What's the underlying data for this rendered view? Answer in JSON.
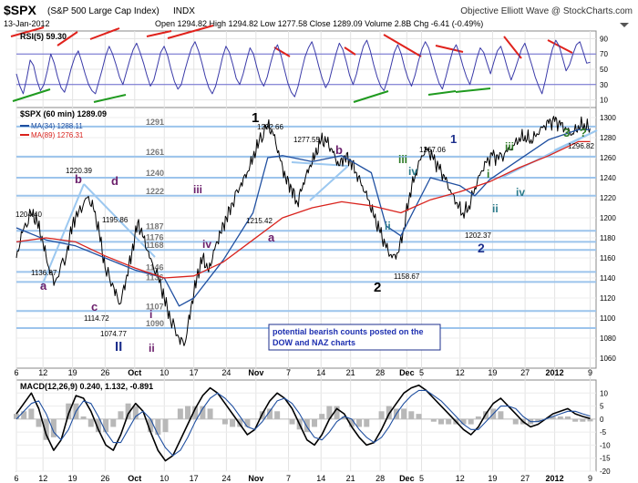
{
  "header": {
    "symbol": "$SPX",
    "description": "(S&P 500 Large Cap Index)",
    "exchange": "INDX",
    "source": "Objective Elliott Wave @ StockCharts.com",
    "date": "13-Jan-2012",
    "quote_line": "Open 1294.82  High 1294.82  Low 1277.58  Close 1289.09  Volume 2.8B  Chg -6.41 (-0.49%)"
  },
  "colors": {
    "price": "#000000",
    "ma34": "#1f4fa0",
    "ma89": "#d9221c",
    "rsi_line": "#3a3aa8",
    "fib_line": "#9cc4ec",
    "wave_purple": "#6b1f6b",
    "wave_blue": "#1d2f8c",
    "wave_green": "#2e7a25",
    "wave_teal": "#2a7a8a",
    "trend_red": "#e0221c",
    "trend_green": "#1f9a1f",
    "trend_lightblue": "#9cc8f0"
  },
  "chart_data": [
    {
      "type": "line",
      "panel": "rsi",
      "title": "RSI(5) 59.30",
      "series_name": "RSI(5)",
      "ylim": [
        0,
        100
      ],
      "yticks": [
        10,
        30,
        50,
        70,
        90
      ],
      "reference_lines": [
        30,
        70
      ],
      "values": [
        44,
        28,
        18,
        38,
        62,
        55,
        35,
        22,
        30,
        48,
        70,
        58,
        40,
        26,
        20,
        34,
        52,
        66,
        74,
        60,
        44,
        30,
        22,
        18,
        34,
        50,
        68,
        80,
        70,
        56,
        40,
        30,
        46,
        62,
        76,
        84,
        72,
        58,
        42,
        28,
        36,
        54,
        72,
        80,
        68,
        50,
        34,
        24,
        30,
        48,
        64,
        78,
        86,
        74,
        58,
        40,
        26,
        18,
        28,
        46,
        66,
        80,
        72,
        56,
        38,
        30,
        44,
        62,
        78,
        70,
        52,
        36,
        28,
        40,
        58,
        74,
        82,
        68,
        50,
        32,
        20,
        14,
        28,
        48,
        66,
        78,
        86,
        72,
        54,
        38,
        26,
        34,
        52,
        70,
        84,
        76,
        60,
        42,
        30,
        44,
        64,
        80,
        88,
        74,
        56,
        40,
        28,
        22,
        36,
        54,
        72,
        82,
        70,
        52,
        38,
        28,
        42,
        60,
        76,
        86,
        78,
        62,
        46,
        32,
        24,
        40,
        58,
        74,
        82,
        70,
        54,
        40,
        30,
        46,
        64,
        78,
        72,
        58,
        44,
        60,
        74,
        80,
        66,
        50,
        36,
        48,
        62,
        76,
        84,
        70,
        56,
        40,
        28,
        18,
        36,
        58,
        76,
        88,
        80,
        64,
        48,
        56,
        70,
        82,
        86,
        72,
        58,
        59
      ]
    },
    {
      "type": "line",
      "panel": "price",
      "title": "$SPX (60 min) 1289.09",
      "series": [
        {
          "name": "$SPX (60 min) 1289.09",
          "x": [
            0,
            2,
            5,
            7,
            9,
            11,
            13,
            17,
            19,
            21,
            24,
            26,
            28,
            30,
            33,
            35,
            37,
            39,
            41,
            43,
            45,
            48,
            50,
            52,
            55,
            57,
            59,
            61,
            63,
            65,
            67,
            69,
            71,
            73,
            76,
            78,
            80,
            82,
            85,
            87,
            89,
            91,
            93,
            95,
            97,
            99,
            101,
            103,
            105,
            107,
            109,
            111,
            113,
            115,
            117,
            119,
            121,
            123,
            125,
            127,
            129,
            131,
            133,
            135,
            137,
            139,
            141,
            143,
            145,
            147,
            149,
            151,
            153,
            155,
            157,
            159,
            161,
            163,
            166,
            168,
            170,
            172,
            174,
            176,
            178,
            180,
            182,
            184,
            186,
            188,
            190,
            192,
            194
          ],
          "values": [
            1160,
            1185,
            1204,
            1196,
            1175,
            1150,
            1136,
            1165,
            1195,
            1205,
            1220,
            1210,
            1185,
            1150,
            1130,
            1114,
            1138,
            1165,
            1195,
            1180,
            1160,
            1140,
            1120,
            1100,
            1080,
            1075,
            1110,
            1140,
            1160,
            1146,
            1168,
            1185,
            1200,
            1215,
            1235,
            1245,
            1260,
            1275,
            1292,
            1282,
            1260,
            1240,
            1230,
            1215,
            1235,
            1250,
            1262,
            1277,
            1275,
            1265,
            1252,
            1262,
            1258,
            1245,
            1232,
            1218,
            1200,
            1185,
            1170,
            1160,
            1165,
            1190,
            1225,
            1245,
            1262,
            1268,
            1258,
            1248,
            1238,
            1225,
            1215,
            1205,
            1212,
            1230,
            1245,
            1255,
            1262,
            1258,
            1266,
            1272,
            1280,
            1282,
            1278,
            1284,
            1290,
            1294,
            1296,
            1292,
            1288,
            1284,
            1292,
            1294,
            1289
          ]
        },
        {
          "name": "MA(34) 1288.11",
          "x": [
            0,
            10,
            20,
            30,
            40,
            50,
            55,
            60,
            70,
            80,
            85,
            90,
            100,
            110,
            120,
            125,
            130,
            140,
            150,
            155,
            160,
            170,
            180,
            190,
            194
          ],
          "values": [
            1190,
            1178,
            1172,
            1160,
            1148,
            1140,
            1112,
            1120,
            1158,
            1205,
            1260,
            1262,
            1256,
            1262,
            1245,
            1192,
            1182,
            1240,
            1232,
            1222,
            1238,
            1258,
            1278,
            1288,
            1288
          ]
        },
        {
          "name": "MA(89) 1276.31",
          "x": [
            0,
            10,
            20,
            30,
            40,
            50,
            60,
            70,
            80,
            90,
            100,
            110,
            120,
            130,
            140,
            150,
            160,
            170,
            180,
            190,
            194
          ],
          "values": [
            1176,
            1180,
            1176,
            1162,
            1150,
            1140,
            1142,
            1156,
            1178,
            1200,
            1210,
            1216,
            1212,
            1205,
            1218,
            1226,
            1236,
            1250,
            1262,
            1276,
            1276
          ]
        }
      ],
      "ylim": [
        1050,
        1310
      ],
      "yticks": [
        1060,
        1080,
        1100,
        1120,
        1140,
        1160,
        1180,
        1200,
        1220,
        1240,
        1260,
        1280,
        1300
      ],
      "fib_levels": [
        1291,
        1261,
        1240,
        1222,
        1187,
        1176,
        1168,
        1146,
        1136,
        1107,
        1090
      ],
      "swing_labels": [
        "1292.66",
        "1277.55",
        "1267.06",
        "1296.82",
        "1220.39",
        "1204.40",
        "1195.86",
        "1215.42",
        "1202.37",
        "1158.67",
        "1136.07",
        "1114.72",
        "1074.77"
      ],
      "wave_labels": {
        "one_black": "1",
        "two_black": "2",
        "three_green": "3",
        "question": "?",
        "b_upper": "b",
        "d_upper": "d",
        "a_left": "a",
        "c_left": "c",
        "II_blue": "II",
        "i_purple": "i",
        "ii_purple": "ii",
        "iii_purple": "iii",
        "iv_purple": "iv",
        "a_purple": "a",
        "b_purple": "b",
        "one_blue": "1",
        "two_blue": "2",
        "iii_green": "iii",
        "i_green": "i",
        "iv_teal": "iv",
        "ii_teal": "ii",
        "iv_teal2": "iv",
        "ii_teal2": "ii"
      },
      "annotation": "potential bearish counts posted on the DOW and NAZ charts"
    },
    {
      "type": "line",
      "panel": "macd",
      "title": "MACD(12,26,9) 0.240, 1.132, -0.891",
      "ylim": [
        -20,
        15
      ],
      "yticks": [
        -20,
        -15,
        -10,
        -5,
        0,
        5,
        10
      ],
      "series": [
        {
          "name": "MACD(12,26,9)",
          "values": [
            2,
            6,
            10,
            4,
            -6,
            -12,
            -8,
            2,
            9,
            8,
            3,
            -4,
            -10,
            -12,
            -6,
            2,
            6,
            3,
            -5,
            -12,
            -16,
            -14,
            -8,
            -2,
            4,
            9,
            12,
            10,
            6,
            2,
            -2,
            -6,
            -4,
            2,
            7,
            10,
            8,
            4,
            -2,
            -8,
            -10,
            -6,
            0,
            4,
            2,
            -3,
            -7,
            -10,
            -9,
            -4,
            2,
            6,
            10,
            12,
            13,
            11,
            8,
            5,
            2,
            -1,
            -4,
            -6,
            -3,
            2,
            6,
            8,
            5,
            2,
            -1,
            -3,
            -2,
            0,
            2,
            3,
            4,
            2,
            1,
            0.24
          ]
        },
        {
          "name": "Signal",
          "values": [
            0,
            3,
            6,
            7,
            2,
            -5,
            -8,
            -4,
            3,
            7,
            6,
            1,
            -5,
            -9,
            -9,
            -4,
            1,
            3,
            0,
            -6,
            -11,
            -14,
            -12,
            -7,
            -1,
            4,
            8,
            10,
            8,
            5,
            1,
            -3,
            -4,
            -1,
            3,
            7,
            8,
            6,
            2,
            -3,
            -7,
            -8,
            -5,
            -1,
            1,
            0,
            -4,
            -7,
            -9,
            -7,
            -3,
            2,
            6,
            9,
            11,
            11,
            9,
            7,
            4,
            1,
            -2,
            -4,
            -4,
            -1,
            2,
            5,
            5,
            4,
            1,
            -1,
            -1,
            0,
            1,
            2,
            3,
            3,
            2,
            1.132
          ]
        }
      ],
      "histogram": [
        2,
        3,
        4,
        -3,
        -8,
        -7,
        0,
        6,
        6,
        1,
        -3,
        -5,
        -5,
        -3,
        3,
        6,
        5,
        0,
        -5,
        -6,
        -5,
        0,
        4,
        5,
        5,
        5,
        4,
        0,
        -2,
        -3,
        -3,
        -3,
        0,
        3,
        4,
        3,
        0,
        -2,
        -4,
        -5,
        -3,
        2,
        5,
        5,
        1,
        -3,
        -3,
        -3,
        0,
        3,
        5,
        4,
        4,
        3,
        2,
        0,
        -1,
        -2,
        -2,
        -2,
        -2,
        -2,
        1,
        3,
        4,
        3,
        0,
        -2,
        -2,
        -2,
        -1,
        0,
        1,
        1,
        1,
        -1,
        -1,
        -0.891
      ]
    }
  ],
  "x_axis": {
    "labels": [
      "6",
      "12",
      "19",
      "26",
      "Oct",
      "10",
      "17",
      "24",
      "Nov",
      "7",
      "14",
      "21",
      "28",
      "Dec",
      "5",
      "12",
      "19",
      "27",
      "2012",
      "9"
    ],
    "positions": [
      0,
      9,
      19,
      30,
      40,
      50,
      60,
      71,
      81,
      92,
      103,
      113,
      123,
      132,
      137,
      150,
      161,
      172,
      182,
      194
    ]
  },
  "legend": {
    "price_label": "$SPX (60 min) 1289.09",
    "ma34_label": "MA(34) 1288.11",
    "ma89_label": "MA(89) 1276.31"
  }
}
